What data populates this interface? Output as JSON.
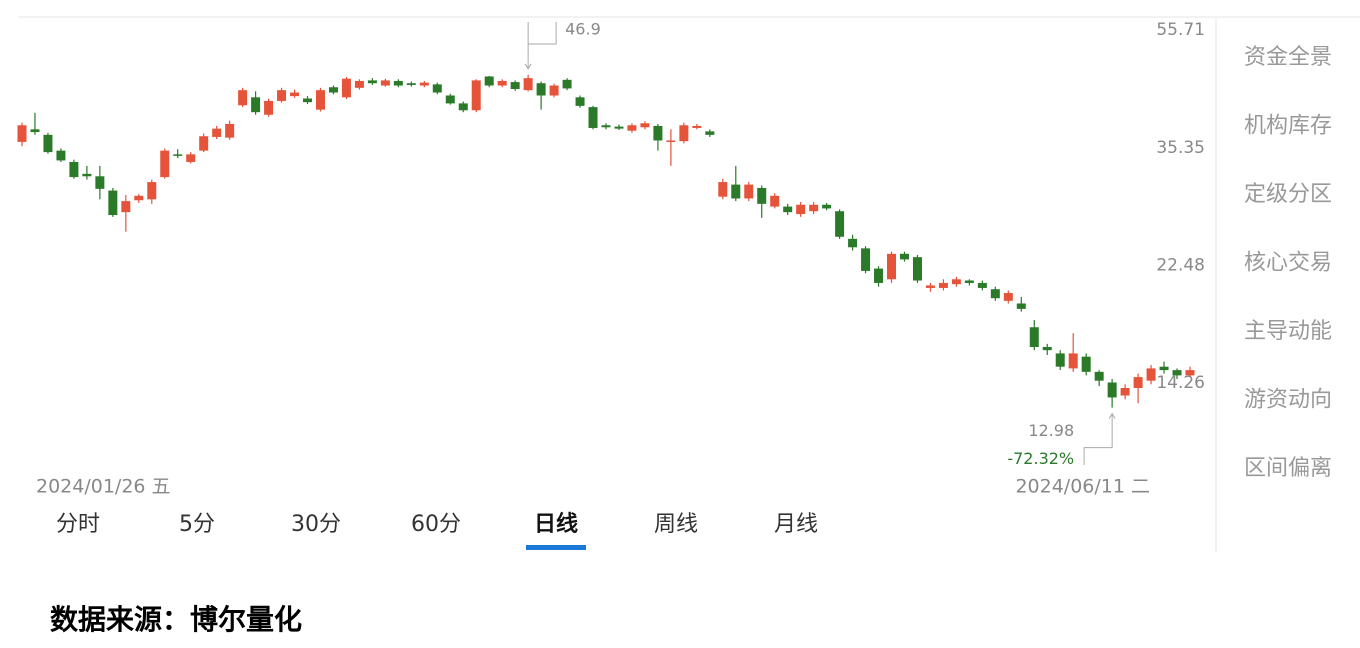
{
  "chart_data": {
    "type": "candlestick",
    "categories": [
      "2024/01/26 五",
      null,
      null,
      null,
      null,
      null,
      null,
      null,
      null,
      null,
      null,
      null,
      null,
      null,
      null,
      null,
      null,
      null,
      null,
      null,
      null,
      null,
      null,
      null,
      null,
      null,
      null,
      null,
      null,
      null,
      null,
      null,
      null,
      null,
      null,
      null,
      null,
      null,
      null,
      null,
      null,
      null,
      null,
      null,
      null,
      null,
      null,
      null,
      null,
      null,
      null,
      null,
      null,
      null,
      null,
      null,
      null,
      null,
      null,
      null,
      null,
      null,
      null,
      null,
      null,
      null,
      null,
      null,
      null,
      null,
      null,
      null,
      null,
      null,
      null,
      null,
      null,
      null,
      null,
      null,
      null,
      null,
      null,
      null,
      null,
      null,
      null,
      null,
      null,
      null,
      "2024/06/11 二"
    ],
    "open": [
      36.2,
      38.0,
      37.2,
      35.0,
      33.5,
      32.0,
      31.7,
      30.0,
      27.6,
      28.9,
      29.0,
      31.6,
      34.5,
      33.5,
      35.0,
      36.9,
      36.8,
      41.7,
      43.0,
      40.2,
      42.4,
      43.2,
      42.8,
      41.0,
      44.7,
      43.0,
      44.6,
      45.9,
      45.0,
      45.8,
      45.4,
      45.0,
      45.2,
      43.3,
      42.0,
      40.9,
      46.6,
      45.0,
      45.6,
      44.2,
      45.4,
      43.3,
      46.0,
      43.0,
      41.4,
      38.6,
      38.4,
      37.8,
      38.3,
      38.5,
      36.2,
      36.3,
      38.2,
      37.7,
      29.3,
      30.7,
      29.1,
      30.3,
      28.2,
      28.2,
      27.4,
      27.7,
      28.4,
      27.7,
      24.9,
      24.0,
      22.2,
      21.3,
      23.5,
      23.2,
      20.6,
      20.6,
      20.9,
      21.2,
      21.0,
      20.5,
      19.6,
      19.4,
      17.7,
      16.4,
      16.0,
      15.1,
      15.8,
      14.9,
      14.3,
      13.6,
      14.0,
      14.4,
      15.2,
      15.0,
      14.7
    ],
    "high": [
      39.0,
      40.5,
      37.5,
      35.3,
      33.8,
      33.0,
      33.0,
      30.3,
      29.5,
      29.6,
      31.3,
      35.3,
      35.2,
      34.8,
      37.4,
      38.5,
      39.3,
      44.6,
      44.0,
      42.8,
      44.6,
      44.3,
      43.2,
      44.6,
      45.0,
      46.5,
      46.1,
      46.3,
      46.2,
      46.1,
      45.7,
      45.8,
      45.5,
      43.6,
      42.3,
      46.1,
      46.7,
      46.1,
      45.9,
      46.9,
      45.7,
      45.3,
      46.3,
      43.3,
      41.6,
      38.9,
      38.7,
      38.9,
      39.2,
      38.8,
      38.0,
      39.0,
      38.8,
      38.0,
      31.4,
      33.0,
      31.0,
      30.6,
      29.7,
      28.5,
      28.7,
      28.7,
      28.6,
      27.9,
      25.3,
      24.2,
      22.4,
      23.7,
      23.7,
      23.4,
      21.0,
      21.3,
      21.5,
      21.3,
      21.2,
      20.7,
      20.4,
      19.9,
      18.2,
      16.6,
      16.2,
      17.3,
      16.0,
      15.0,
      14.5,
      14.2,
      14.8,
      15.3,
      15.5,
      15.1,
      15.2
    ],
    "low": [
      35.6,
      37.2,
      34.6,
      33.5,
      31.4,
      31.3,
      29.0,
      27.1,
      25.6,
      28.6,
      28.5,
      31.4,
      34.0,
      33.3,
      34.8,
      36.6,
      36.5,
      41.4,
      40.2,
      39.9,
      42.1,
      42.9,
      41.9,
      40.7,
      43.5,
      42.7,
      44.3,
      45.1,
      44.8,
      44.7,
      44.8,
      44.7,
      43.5,
      41.8,
      40.6,
      40.6,
      44.7,
      44.7,
      44.1,
      44.0,
      41.0,
      43.0,
      44.2,
      41.3,
      38.0,
      38.0,
      37.9,
      37.5,
      38.0,
      35.0,
      33.0,
      36.0,
      38.0,
      36.9,
      29.0,
      28.8,
      28.8,
      27.0,
      28.0,
      27.3,
      27.1,
      27.4,
      27.8,
      24.9,
      23.8,
      21.8,
      20.7,
      21.0,
      22.8,
      21.0,
      20.3,
      20.4,
      20.7,
      20.8,
      20.4,
      19.6,
      19.4,
      18.8,
      16.2,
      15.9,
      15.0,
      14.9,
      14.7,
      14.1,
      12.98,
      13.4,
      13.2,
      14.2,
      14.8,
      14.5,
      14.6
    ],
    "close": [
      38.6,
      37.6,
      34.8,
      33.7,
      31.6,
      31.7,
      30.2,
      27.3,
      28.8,
      29.4,
      31.0,
      35.0,
      34.3,
      34.5,
      37.0,
      38.1,
      38.8,
      44.2,
      40.6,
      42.4,
      44.2,
      43.8,
      42.2,
      44.2,
      43.8,
      46.2,
      45.8,
      45.4,
      45.9,
      45.0,
      45.1,
      45.5,
      43.8,
      42.0,
      40.9,
      45.9,
      45.0,
      45.8,
      44.4,
      46.3,
      43.3,
      45.0,
      44.5,
      41.6,
      38.2,
      38.3,
      38.1,
      38.6,
      38.9,
      36.4,
      36.4,
      38.6,
      38.5,
      37.2,
      31.0,
      29.1,
      30.7,
      28.5,
      29.4,
      27.6,
      28.4,
      28.4,
      28.0,
      25.1,
      24.1,
      22.0,
      21.0,
      23.5,
      23.0,
      21.2,
      20.8,
      21.0,
      21.3,
      21.0,
      20.6,
      19.8,
      20.2,
      19.0,
      16.4,
      16.2,
      15.2,
      16.0,
      14.9,
      14.4,
      13.5,
      14.0,
      14.6,
      15.1,
      15.0,
      14.7,
      15.0
    ],
    "up_color": "#e5533a",
    "down_color": "#2a7a2a",
    "log_scale": true,
    "grid": false,
    "ylim": [
      10.4,
      58.4
    ],
    "yticks": [
      55.71,
      35.35,
      22.48,
      14.26
    ],
    "max_label": 46.9,
    "min_label": 12.98,
    "change": {
      "value": -72.32,
      "label": "-72.32%"
    }
  },
  "tabs": [
    "分时",
    "5分",
    "30分",
    "60分",
    "日线",
    "周线",
    "月线"
  ],
  "active_tab": 4,
  "sidebar": [
    "资金全景",
    "机构库存",
    "定级分区",
    "核心交易",
    "主导动能",
    "游资动向",
    "区间偏离"
  ],
  "source": "数据来源：博尔量化"
}
